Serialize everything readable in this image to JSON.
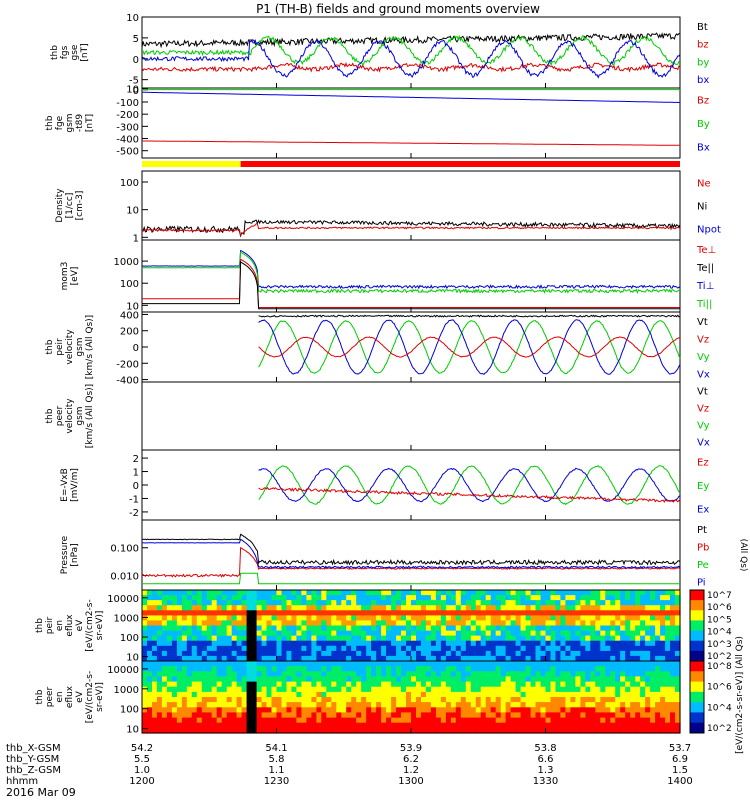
{
  "title": "P1 (TH-B) fields and ground moments overview",
  "date_label": "2016 Mar 09",
  "colors": {
    "black": "#000000",
    "red": "#e00000",
    "green": "#00cc00",
    "blue": "#0000dd",
    "yellow": "#ffff00",
    "mode_red": "#ff0000"
  },
  "xaxis": {
    "tick_minutes": [
      0,
      30,
      60,
      90,
      120
    ],
    "rows": [
      {
        "label": "thb_X-GSM",
        "values": [
          "54.2",
          "54.1",
          "53.9",
          "53.8",
          "53.7"
        ]
      },
      {
        "label": "thb_Y-GSM",
        "values": [
          "5.5",
          "5.8",
          "6.2",
          "6.6",
          "6.9"
        ]
      },
      {
        "label": "thb_Z-GSM",
        "values": [
          "1.0",
          "1.1",
          "1.2",
          "1.3",
          "1.5"
        ]
      },
      {
        "label": "hhmm",
        "values": [
          "1200",
          "1230",
          "1300",
          "1330",
          "1400"
        ]
      }
    ]
  },
  "chart_data": [
    {
      "type": "line",
      "id": "fgs",
      "ylabel": [
        "thb",
        "fgs",
        "gse",
        "[nT]"
      ],
      "ylim": [
        -7,
        10
      ],
      "yticks": [
        "10",
        "5",
        "0",
        "-5"
      ],
      "ytick_values": [
        10,
        5,
        0,
        -5
      ],
      "legend": [
        {
          "name": "Bt",
          "color": "black"
        },
        {
          "name": "bz",
          "color": "red"
        },
        {
          "name": "by",
          "color": "green"
        },
        {
          "name": "bx",
          "color": "blue"
        }
      ]
    },
    {
      "type": "line",
      "id": "fge",
      "ylabel": [
        "thb",
        "fge",
        "gsm",
        "-t89",
        "[nT]"
      ],
      "ylim": [
        -560,
        15
      ],
      "yticks": [
        "10",
        "0",
        "-100",
        "-200",
        "-300",
        "-400",
        "-500"
      ],
      "ytick_values": [
        10,
        0,
        -100,
        -200,
        -300,
        -400,
        -500
      ],
      "legend": [
        {
          "name": "Bz",
          "color": "red"
        },
        {
          "name": "By",
          "color": "green"
        },
        {
          "name": "Bx",
          "color": "blue"
        }
      ]
    },
    {
      "type": "line",
      "id": "density",
      "ylabel": [
        "Density",
        "[1/cc]",
        "[cm-3]"
      ],
      "ylim": [
        0.8,
        250
      ],
      "log": true,
      "yticks": [
        "100",
        "10",
        "1"
      ],
      "ytick_values": [
        100,
        10,
        1
      ],
      "legend": [
        {
          "name": "Ne",
          "color": "red"
        },
        {
          "name": "Ni",
          "color": "black"
        },
        {
          "name": "Npot",
          "color": "blue"
        }
      ]
    },
    {
      "type": "line",
      "id": "temp",
      "ylabel": [
        "mom3",
        "[eV]"
      ],
      "ylim": [
        5,
        9000
      ],
      "log": true,
      "yticks": [
        "1000",
        "100",
        "10"
      ],
      "ytick_values": [
        1000,
        100,
        10
      ],
      "legend": [
        {
          "name": "Te⊥",
          "color": "red"
        },
        {
          "name": "Te||",
          "color": "black"
        },
        {
          "name": "Ti⊥",
          "color": "blue"
        },
        {
          "name": "Ti||",
          "color": "green"
        }
      ]
    },
    {
      "type": "line",
      "id": "peir_v",
      "ylabel": [
        "thb",
        "peir",
        "velocity",
        "gsm",
        "[km/s (All Qs)]"
      ],
      "ylim": [
        -430,
        430
      ],
      "yticks": [
        "400",
        "200",
        "0",
        "-200",
        "-400"
      ],
      "ytick_values": [
        400,
        200,
        0,
        -200,
        -400
      ],
      "legend": [
        {
          "name": "Vt",
          "color": "black"
        },
        {
          "name": "Vz",
          "color": "red"
        },
        {
          "name": "Vy",
          "color": "green"
        },
        {
          "name": "Vx",
          "color": "blue"
        }
      ]
    },
    {
      "type": "line",
      "id": "peer_v",
      "ylabel": [
        "thb",
        "peer",
        "velocity",
        "gsm",
        "[km/s (All Qs)]"
      ],
      "ylim": [
        -430,
        430
      ],
      "yticks": [],
      "ytick_values": [],
      "legend": [
        {
          "name": "Vt",
          "color": "black"
        },
        {
          "name": "Vz",
          "color": "red"
        },
        {
          "name": "Vy",
          "color": "green"
        },
        {
          "name": "Vx",
          "color": "blue"
        }
      ]
    },
    {
      "type": "line",
      "id": "exb",
      "ylabel": [
        "E=-VxB",
        "[mV/m]"
      ],
      "ylim": [
        -2.6,
        2.6
      ],
      "yticks": [
        "2",
        "1",
        "0",
        "-1",
        "-2"
      ],
      "ytick_values": [
        2,
        1,
        0,
        -1,
        -2
      ],
      "legend": [
        {
          "name": "Ez",
          "color": "red"
        },
        {
          "name": "Ey",
          "color": "green"
        },
        {
          "name": "Ex",
          "color": "blue"
        }
      ]
    },
    {
      "type": "line",
      "id": "pressure",
      "ylabel": [
        "Pressure",
        "[nPa]"
      ],
      "ylim": [
        0.003,
        1.0
      ],
      "log": true,
      "yticks": [
        "0.100",
        "0.010"
      ],
      "ytick_values": [
        0.1,
        0.01
      ],
      "legend": [
        {
          "name": "Pt",
          "color": "black"
        },
        {
          "name": "Pb",
          "color": "red"
        },
        {
          "name": "Pe",
          "color": "green"
        },
        {
          "name": "Pi",
          "color": "blue"
        }
      ],
      "side_note": "(All Qs)"
    },
    {
      "type": "heatmap",
      "id": "peir_en",
      "ylabel": [
        "thb",
        "peir",
        "en",
        "eflux",
        "eV",
        "[eV/(cm2-s-",
        "sr-eV)]"
      ],
      "ylim": [
        6,
        25000
      ],
      "log": true,
      "yticks": [
        "10000",
        "1000",
        "100",
        "10"
      ],
      "ytick_values": [
        10000,
        1000,
        100,
        10
      ],
      "colorbar": [
        "10^7",
        "10^6",
        "10^5",
        "10^4",
        "10^3",
        "10^2"
      ]
    },
    {
      "type": "heatmap",
      "id": "peer_en",
      "ylabel": [
        "thb",
        "peer",
        "en",
        "eflux",
        "eV",
        "[eV/(cm2-s-",
        "sr-eV)]"
      ],
      "ylim": [
        6,
        25000
      ],
      "log": true,
      "yticks": [
        "10000",
        "1000",
        "100",
        "10"
      ],
      "ytick_values": [
        10000,
        1000,
        100,
        10
      ],
      "colorbar": [
        "10^8",
        "10^6",
        "10^4",
        "10^2"
      ]
    }
  ],
  "colorbar_label": "[eV/(cm2-s-sr-eV)] (All Qs)"
}
